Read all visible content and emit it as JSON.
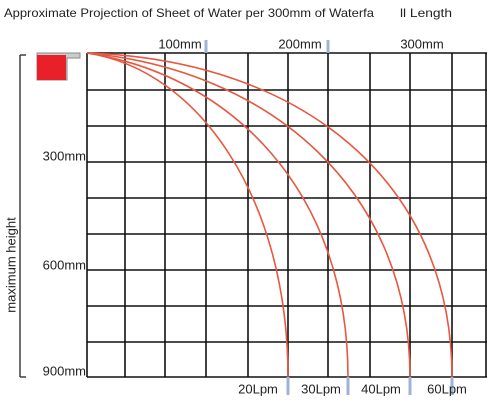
{
  "header": {
    "title": "Approximate Projection of Sheet of Water per 300mm of Waterfa",
    "title_tail": "ll Length"
  },
  "top_labels": [
    "100mm",
    "200mm",
    "300mm"
  ],
  "left_labels": [
    "300mm",
    "600mm",
    "900mm"
  ],
  "axis_label": "maximum height",
  "bottom_labels": [
    "20Lpm",
    "30Lpm",
    "40Lpm",
    "60Lpm"
  ]
}
